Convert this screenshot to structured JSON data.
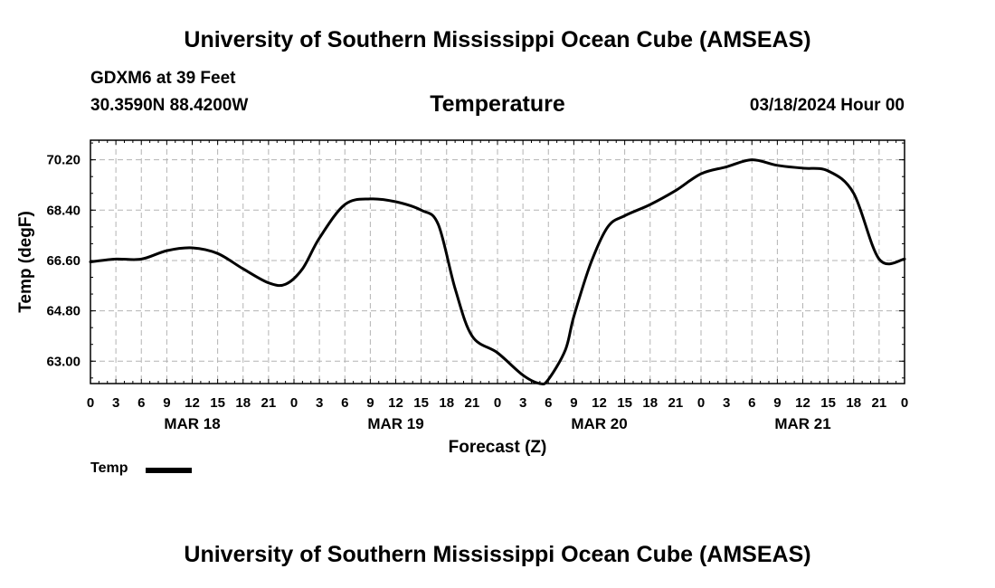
{
  "header": {
    "title": "University of Southern Mississippi Ocean Cube (AMSEAS)",
    "station": "GDXM6 at 39 Feet",
    "coords": "30.3590N  88.4200W",
    "variable": "Temperature",
    "run_time": "03/18/2024 Hour 00"
  },
  "footer": {
    "title": "University of Southern Mississippi Ocean Cube (AMSEAS)"
  },
  "legend": {
    "label": "Temp",
    "color": "#000000"
  },
  "chart_data": {
    "type": "line",
    "title": "Temperature",
    "xlabel": "Forecast (Z)",
    "ylabel": "Temp (degF)",
    "xlim": [
      0,
      96
    ],
    "ylim": [
      62.2,
      70.9
    ],
    "grid": true,
    "yticks": [
      63.0,
      64.8,
      66.6,
      68.4,
      70.2
    ],
    "ytick_labels": [
      "63.00",
      "64.80",
      "66.60",
      "68.40",
      "70.20"
    ],
    "xtick_step_hours": 3,
    "xtick_labels": [
      "0",
      "3",
      "6",
      "9",
      "12",
      "15",
      "18",
      "21",
      "0",
      "3",
      "6",
      "9",
      "12",
      "15",
      "18",
      "21",
      "0",
      "3",
      "6",
      "9",
      "12",
      "15",
      "18",
      "21",
      "0",
      "3",
      "6",
      "9",
      "12",
      "15",
      "18",
      "21",
      "0"
    ],
    "day_labels": [
      {
        "label": "MAR 18",
        "hour": 12
      },
      {
        "label": "MAR 19",
        "hour": 36
      },
      {
        "label": "MAR 20",
        "hour": 60
      },
      {
        "label": "MAR 21",
        "hour": 84
      }
    ],
    "series": [
      {
        "name": "Temp",
        "x": [
          0,
          3,
          6,
          9,
          12,
          15,
          18,
          21,
          23,
          25,
          27,
          30,
          33,
          36,
          39,
          41,
          43,
          45,
          48,
          51,
          53,
          54,
          56,
          57,
          59,
          61,
          63,
          66,
          69,
          72,
          75,
          78,
          81,
          84,
          87,
          90,
          93,
          96
        ],
        "y": [
          66.55,
          66.65,
          66.65,
          66.95,
          67.05,
          66.85,
          66.3,
          65.8,
          65.75,
          66.3,
          67.4,
          68.6,
          68.8,
          68.7,
          68.4,
          67.9,
          65.6,
          63.9,
          63.3,
          62.5,
          62.2,
          62.35,
          63.4,
          64.6,
          66.5,
          67.8,
          68.2,
          68.6,
          69.1,
          69.7,
          69.95,
          70.2,
          70.0,
          69.9,
          69.8,
          69.0,
          66.65,
          66.65
        ]
      }
    ]
  }
}
